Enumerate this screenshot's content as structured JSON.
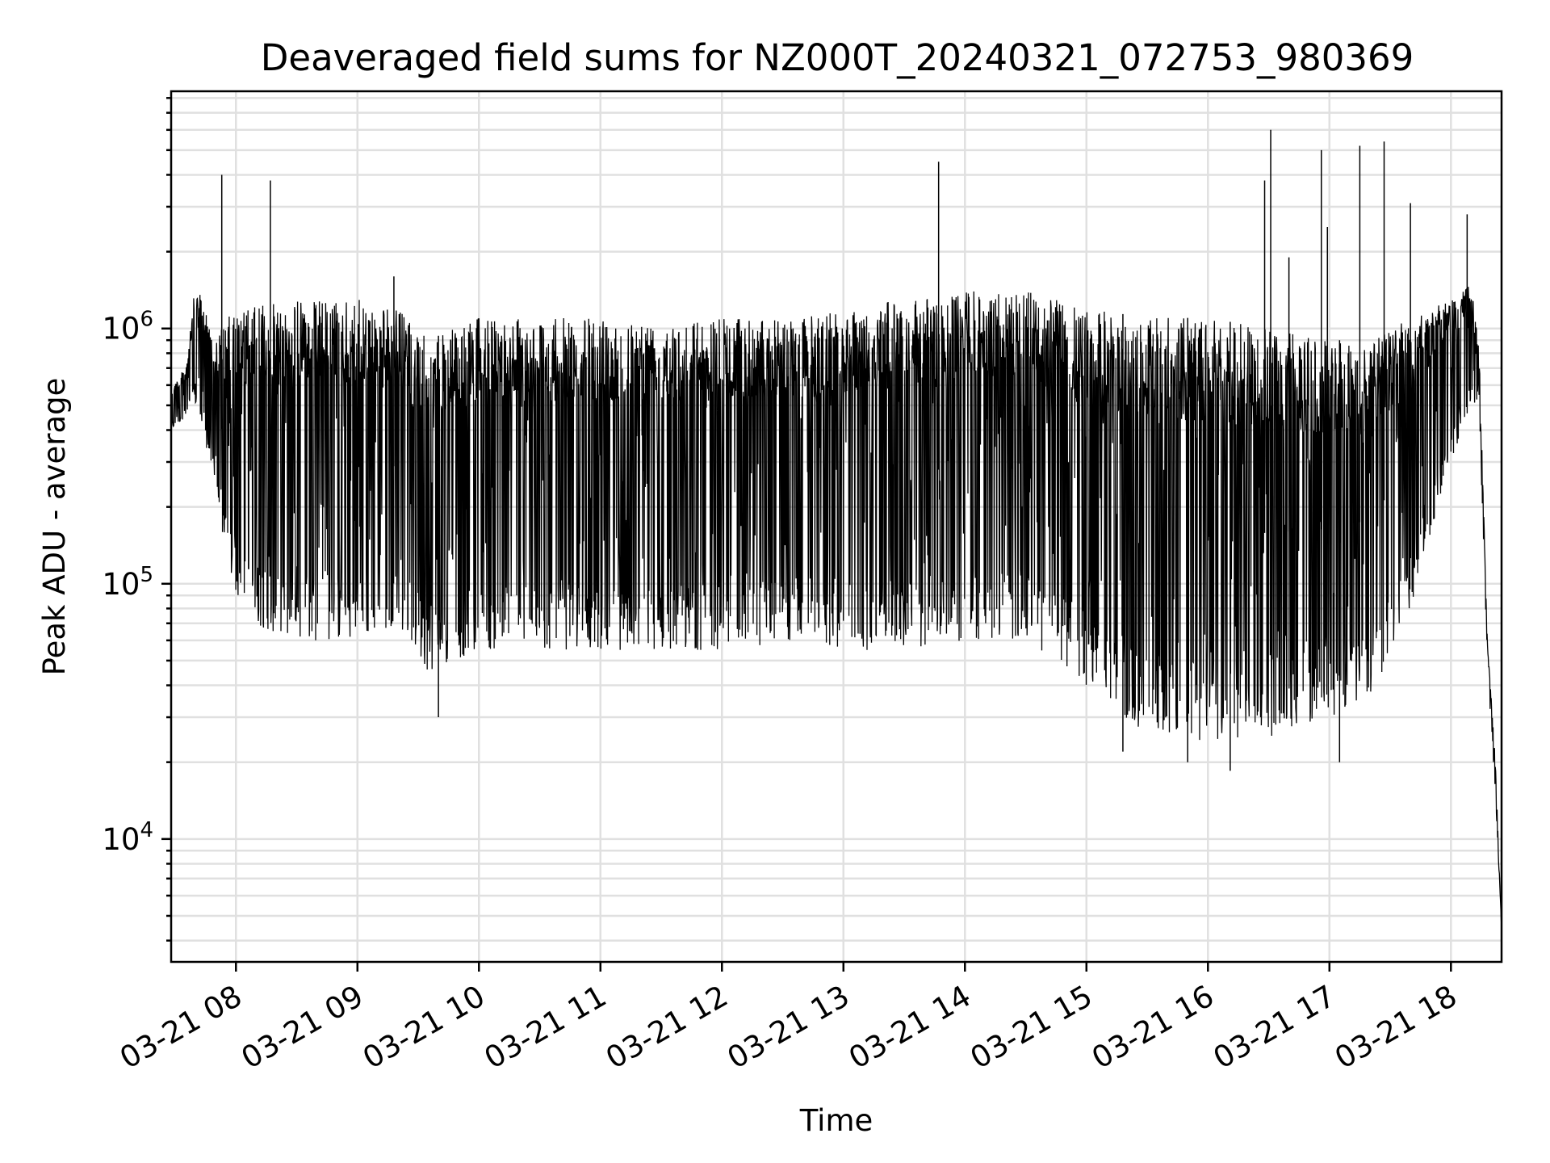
{
  "chart_data": {
    "type": "line",
    "title": "Deaveraged field sums for NZ000T_20240321_072753_980369",
    "xlabel": "Time",
    "ylabel": "Peak ADU - average",
    "yscale": "log",
    "ylim": [
      3300,
      8500000
    ],
    "xlim": [
      "2024-03-21 07:28",
      "2024-03-21 18:25"
    ],
    "x_ticks": [
      "2024-03-21 08:00",
      "2024-03-21 09:00",
      "2024-03-21 10:00",
      "2024-03-21 11:00",
      "2024-03-21 12:00",
      "2024-03-21 13:00",
      "2024-03-21 14:00",
      "2024-03-21 15:00",
      "2024-03-21 16:00",
      "2024-03-21 17:00",
      "2024-03-21 18:00"
    ],
    "x_tick_labels": [
      "03-21 08",
      "03-21 09",
      "03-21 10",
      "03-21 11",
      "03-21 12",
      "03-21 13",
      "03-21 14",
      "03-21 15",
      "03-21 16",
      "03-21 17",
      "03-21 18"
    ],
    "y_ticks": [
      {
        "value": 10000,
        "base": "10",
        "exp": "4"
      },
      {
        "value": 100000,
        "base": "10",
        "exp": "5"
      },
      {
        "value": 1000000,
        "base": "10",
        "exp": "6"
      }
    ],
    "grid": true,
    "line_color": "#000000",
    "series": [
      {
        "envelope": [
          {
            "x": "2024-03-21 07:28",
            "hi": 600000,
            "lo": 400000
          },
          {
            "x": "2024-03-21 07:35",
            "hi": 700000,
            "lo": 450000
          },
          {
            "x": "2024-03-21 07:40",
            "hi": 1500000,
            "lo": 500000
          },
          {
            "x": "2024-03-21 07:45",
            "hi": 1200000,
            "lo": 350000
          },
          {
            "x": "2024-03-21 07:50",
            "hi": 900000,
            "lo": 250000
          },
          {
            "x": "2024-03-21 07:55",
            "hi": 1100000,
            "lo": 120000
          },
          {
            "x": "2024-03-21 08:05",
            "hi": 1200000,
            "lo": 70000
          },
          {
            "x": "2024-03-21 08:30",
            "hi": 1300000,
            "lo": 60000
          },
          {
            "x": "2024-03-21 09:00",
            "hi": 1300000,
            "lo": 60000
          },
          {
            "x": "2024-03-21 09:20",
            "hi": 1200000,
            "lo": 70000
          },
          {
            "x": "2024-03-21 09:35",
            "hi": 900000,
            "lo": 45000
          },
          {
            "x": "2024-03-21 10:00",
            "hi": 1100000,
            "lo": 55000
          },
          {
            "x": "2024-03-21 11:00",
            "hi": 1100000,
            "lo": 55000
          },
          {
            "x": "2024-03-21 12:00",
            "hi": 1100000,
            "lo": 55000
          },
          {
            "x": "2024-03-21 12:40",
            "hi": 1100000,
            "lo": 60000
          },
          {
            "x": "2024-03-21 13:00",
            "hi": 1200000,
            "lo": 55000
          },
          {
            "x": "2024-03-21 13:30",
            "hi": 1300000,
            "lo": 55000
          },
          {
            "x": "2024-03-21 14:00",
            "hi": 1400000,
            "lo": 60000
          },
          {
            "x": "2024-03-21 14:30",
            "hi": 1400000,
            "lo": 60000
          },
          {
            "x": "2024-03-21 15:00",
            "hi": 1200000,
            "lo": 40000
          },
          {
            "x": "2024-03-21 15:30",
            "hi": 1100000,
            "lo": 25000
          },
          {
            "x": "2024-03-21 16:00",
            "hi": 1100000,
            "lo": 23000
          },
          {
            "x": "2024-03-21 16:30",
            "hi": 1000000,
            "lo": 25000
          },
          {
            "x": "2024-03-21 17:00",
            "hi": 900000,
            "lo": 30000
          },
          {
            "x": "2024-03-21 17:20",
            "hi": 900000,
            "lo": 35000
          },
          {
            "x": "2024-03-21 17:40",
            "hi": 1100000,
            "lo": 80000
          },
          {
            "x": "2024-03-21 18:00",
            "hi": 1300000,
            "lo": 300000
          },
          {
            "x": "2024-03-21 18:10",
            "hi": 1500000,
            "lo": 500000
          },
          {
            "x": "2024-03-21 18:14",
            "hi": 800000,
            "lo": 500000
          },
          {
            "x": "2024-03-21 18:18",
            "hi": 60000,
            "lo": 40000
          },
          {
            "x": "2024-03-21 18:22",
            "hi": 20000,
            "lo": 15000
          },
          {
            "x": "2024-03-21 18:25",
            "hi": 4500,
            "lo": 4500
          }
        ],
        "spikes": [
          {
            "x": "2024-03-21 07:53",
            "y": 4000000
          },
          {
            "x": "2024-03-21 08:17",
            "y": 3800000
          },
          {
            "x": "2024-03-21 09:18",
            "y": 1600000
          },
          {
            "x": "2024-03-21 13:47",
            "y": 4500000
          },
          {
            "x": "2024-03-21 16:28",
            "y": 3800000
          },
          {
            "x": "2024-03-21 16:31",
            "y": 6000000
          },
          {
            "x": "2024-03-21 16:40",
            "y": 1900000
          },
          {
            "x": "2024-03-21 16:56",
            "y": 5000000
          },
          {
            "x": "2024-03-21 16:59",
            "y": 2500000
          },
          {
            "x": "2024-03-21 17:15",
            "y": 5200000
          },
          {
            "x": "2024-03-21 17:27",
            "y": 5400000
          },
          {
            "x": "2024-03-21 17:40",
            "y": 3100000
          },
          {
            "x": "2024-03-21 18:08",
            "y": 2800000
          }
        ],
        "dips": [
          {
            "x": "2024-03-21 09:40",
            "y": 30000
          },
          {
            "x": "2024-03-21 15:50",
            "y": 20000
          },
          {
            "x": "2024-03-21 16:11",
            "y": 18500
          },
          {
            "x": "2024-03-21 17:05",
            "y": 20000
          },
          {
            "x": "2024-03-21 15:18",
            "y": 22000
          }
        ]
      }
    ]
  }
}
